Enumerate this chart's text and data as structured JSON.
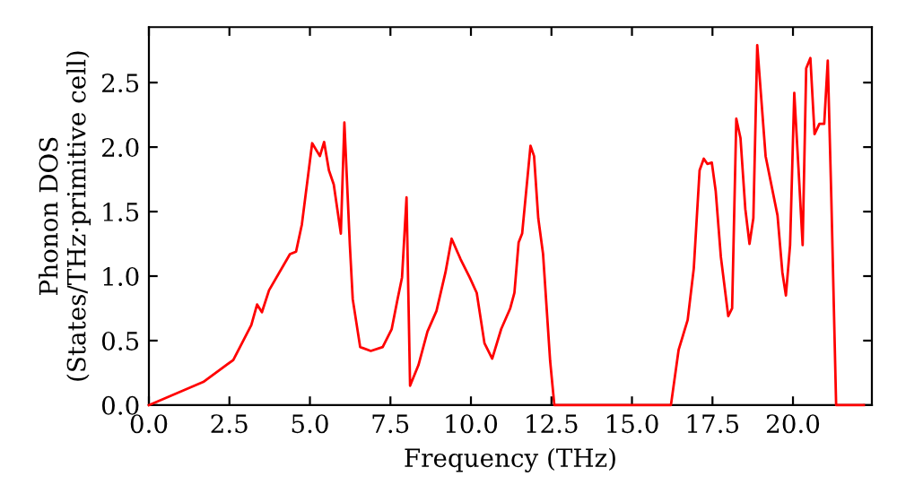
{
  "chart_data": {
    "type": "line",
    "xlabel": "Frequency (THz)",
    "ylabel": "Phonon DOS\n(States/THz·primitive cell)",
    "x": [
      0,
      1.69,
      2.62,
      3.18,
      3.36,
      3.51,
      3.73,
      4.38,
      4.57,
      4.75,
      5.07,
      5.31,
      5.44,
      5.59,
      5.74,
      5.96,
      6.07,
      6.24,
      6.33,
      6.56,
      6.89,
      7.26,
      7.54,
      7.72,
      7.86,
      8.0,
      8.11,
      8.37,
      8.65,
      8.93,
      9.21,
      9.4,
      9.68,
      9.96,
      10.18,
      10.42,
      10.66,
      10.94,
      11.22,
      11.35,
      11.48,
      11.59,
      11.85,
      11.96,
      12.09,
      12.24,
      12.46,
      12.59,
      16.21,
      16.45,
      16.73,
      16.92,
      17.1,
      17.23,
      17.34,
      17.48,
      17.6,
      17.76,
      17.99,
      18.11,
      18.24,
      18.37,
      18.52,
      18.65,
      18.77,
      18.89,
      19.15,
      19.52,
      19.67,
      19.78,
      19.91,
      20.04,
      20.17,
      20.3,
      20.41,
      20.54,
      20.67,
      20.82,
      20.97,
      21.08,
      21.19,
      21.34,
      22.2
    ],
    "series": [
      {
        "color": "#ff0000",
        "values": [
          0,
          0.18,
          0.35,
          0.62,
          0.78,
          0.72,
          0.89,
          1.17,
          1.19,
          1.4,
          2.03,
          1.93,
          2.04,
          1.82,
          1.71,
          1.33,
          2.19,
          1.24,
          0.82,
          0.45,
          0.42,
          0.45,
          0.59,
          0.82,
          0.99,
          1.61,
          0.15,
          0.31,
          0.57,
          0.73,
          1.03,
          1.29,
          1.13,
          0.99,
          0.87,
          0.48,
          0.36,
          0.59,
          0.75,
          0.87,
          1.26,
          1.33,
          2.01,
          1.93,
          1.45,
          1.17,
          0.34,
          0,
          0,
          0.43,
          0.66,
          1.06,
          1.82,
          1.91,
          1.87,
          1.88,
          1.66,
          1.15,
          0.69,
          0.75,
          2.22,
          2.07,
          1.52,
          1.25,
          1.45,
          2.79,
          1.93,
          1.47,
          1.03,
          0.85,
          1.24,
          2.42,
          1.84,
          1.24,
          2.61,
          2.69,
          2.1,
          2.18,
          2.18,
          2.67,
          1.61,
          0,
          0
        ]
      }
    ],
    "xlim": [
      0,
      22.45
    ],
    "ylim": [
      0,
      2.93
    ],
    "xticks": [
      {
        "value": 0,
        "label": "0.0"
      },
      {
        "value": 2.5,
        "label": "2.5"
      },
      {
        "value": 5,
        "label": "5.0"
      },
      {
        "value": 7.5,
        "label": "7.5"
      },
      {
        "value": 10,
        "label": "10.0"
      },
      {
        "value": 12.5,
        "label": "12.5"
      },
      {
        "value": 15,
        "label": "15.0"
      },
      {
        "value": 17.5,
        "label": "17.5"
      },
      {
        "value": 20,
        "label": "20.0"
      }
    ],
    "yticks": [
      {
        "value": 0,
        "label": "0.0"
      },
      {
        "value": 0.5,
        "label": "0.5"
      },
      {
        "value": 1,
        "label": "1.0"
      },
      {
        "value": 1.5,
        "label": "1.5"
      },
      {
        "value": 2,
        "label": "2.0"
      },
      {
        "value": 2.5,
        "label": "2.5"
      }
    ],
    "grid": false,
    "legend": false,
    "marker": "none",
    "line_style": "solid"
  }
}
